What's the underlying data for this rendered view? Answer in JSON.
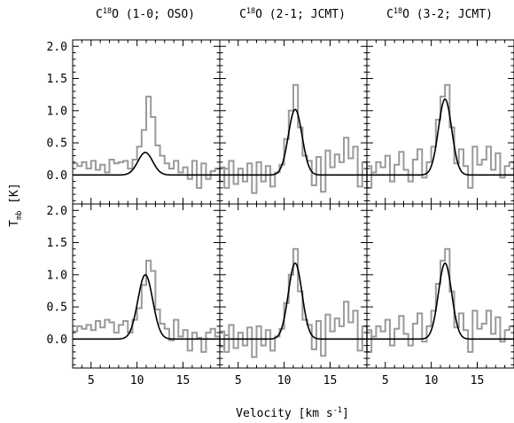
{
  "chart_data": {
    "type": "line",
    "layout": "2 rows x 3 columns, shared axes",
    "columns": [
      {
        "title_pre": "C",
        "title_sup": "18",
        "title_post": "O (1-0; OSO)"
      },
      {
        "title_pre": "C",
        "title_sup": "18",
        "title_post": "O (2-1; JCMT)"
      },
      {
        "title_pre": "C",
        "title_sup": "18",
        "title_post": "O (3-2; JCMT)"
      }
    ],
    "xlabel": {
      "main": "Velocity [km s",
      "sup": "-1",
      "close": "]"
    },
    "ylabel": {
      "main": "T",
      "sub": "mb",
      "close": " [K]"
    },
    "xlim": [
      3,
      19
    ],
    "ylim": [
      -0.45,
      2.1
    ],
    "xticks": [
      5,
      10,
      15
    ],
    "yticks": [
      "0.0",
      "0.5",
      "1.0",
      "1.5",
      "2.0"
    ],
    "x_start": 3.0,
    "bin_width": 0.5,
    "panels": [
      {
        "row": 0,
        "col": 0,
        "observed": [
          0.18,
          0.14,
          0.2,
          0.1,
          0.22,
          0.08,
          0.16,
          0.04,
          0.24,
          0.18,
          0.2,
          0.22,
          0.1,
          0.24,
          0.44,
          0.7,
          1.22,
          0.9,
          0.46,
          0.3,
          0.18,
          0.1,
          0.22,
          0.04,
          0.12,
          -0.06,
          0.22,
          -0.2,
          0.18,
          -0.06,
          0.06,
          0.1,
          -0.1,
          0.1
        ],
        "fit": {
          "amplitude": 0.35,
          "center": 10.9,
          "fwhm": 1.9
        }
      },
      {
        "row": 0,
        "col": 1,
        "observed": [
          0.12,
          -0.2,
          0.22,
          -0.14,
          0.1,
          -0.1,
          0.18,
          -0.28,
          0.2,
          -0.1,
          0.14,
          -0.18,
          0.04,
          0.16,
          0.56,
          1.0,
          1.4,
          0.74,
          0.3,
          0.22,
          -0.16,
          0.28,
          -0.26,
          0.38,
          0.12,
          0.32,
          0.2,
          0.58,
          0.26,
          0.44,
          -0.18,
          0.2,
          -0.2,
          0.04
        ],
        "fit": {
          "amplitude": 1.02,
          "center": 11.2,
          "fwhm": 1.75
        }
      },
      {
        "row": 0,
        "col": 2,
        "observed": [
          0.14,
          0.04,
          0.2,
          0.12,
          0.3,
          -0.1,
          0.16,
          0.36,
          0.08,
          -0.1,
          0.24,
          0.4,
          -0.04,
          0.2,
          0.44,
          0.86,
          1.22,
          1.4,
          0.74,
          0.18,
          0.4,
          0.14,
          -0.2,
          0.44,
          0.16,
          0.24,
          0.44,
          0.08,
          0.34,
          -0.04,
          0.14,
          0.2,
          -0.1,
          0.04
        ],
        "fit": {
          "amplitude": 1.18,
          "center": 11.5,
          "fwhm": 1.7
        }
      },
      {
        "row": 1,
        "col": 0,
        "observed": [
          0.12,
          0.2,
          0.16,
          0.22,
          0.14,
          0.28,
          0.18,
          0.3,
          0.26,
          0.1,
          0.22,
          0.28,
          0.1,
          0.3,
          0.48,
          0.84,
          1.22,
          1.06,
          0.46,
          0.24,
          0.16,
          -0.02,
          0.3,
          0.04,
          0.14,
          -0.18,
          0.1,
          0.02,
          -0.2,
          0.1,
          0.16,
          0.04,
          -0.12,
          0.06
        ],
        "fit": {
          "amplitude": 1.0,
          "center": 10.9,
          "fwhm": 1.9
        }
      },
      {
        "row": 1,
        "col": 1,
        "observed": [
          0.12,
          -0.2,
          0.22,
          -0.14,
          0.1,
          -0.1,
          0.18,
          -0.28,
          0.2,
          -0.1,
          0.14,
          -0.18,
          0.04,
          0.16,
          0.56,
          1.0,
          1.4,
          0.74,
          0.3,
          0.22,
          -0.16,
          0.28,
          -0.26,
          0.38,
          0.12,
          0.32,
          0.2,
          0.58,
          0.26,
          0.44,
          -0.18,
          0.2,
          -0.2,
          0.04
        ],
        "fit": {
          "amplitude": 1.18,
          "center": 11.2,
          "fwhm": 1.75
        }
      },
      {
        "row": 1,
        "col": 2,
        "observed": [
          0.14,
          0.04,
          0.2,
          0.12,
          0.3,
          -0.1,
          0.16,
          0.36,
          0.08,
          -0.1,
          0.24,
          0.4,
          -0.04,
          0.2,
          0.44,
          0.86,
          1.22,
          1.4,
          0.74,
          0.18,
          0.4,
          0.14,
          -0.2,
          0.44,
          0.16,
          0.24,
          0.44,
          0.08,
          0.34,
          -0.04,
          0.14,
          0.2,
          -0.1,
          0.04
        ],
        "fit": {
          "amplitude": 1.18,
          "center": 11.5,
          "fwhm": 1.7
        }
      }
    ],
    "grid": false,
    "legend": "none",
    "colors": {
      "observed": "#9a9a9a",
      "fit": "#000000",
      "axes": "#000000"
    }
  }
}
